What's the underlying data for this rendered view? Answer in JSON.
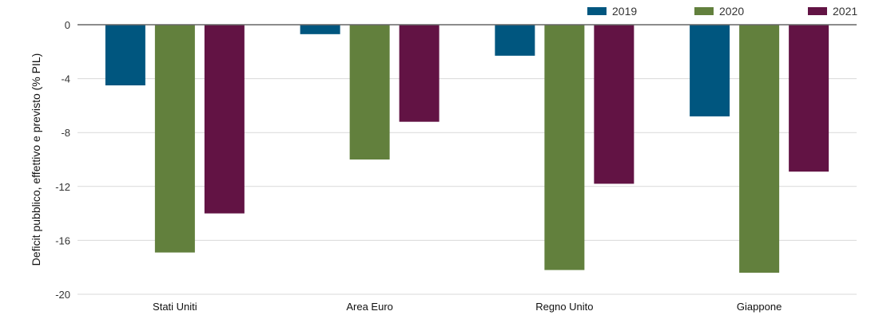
{
  "chart_data": {
    "type": "bar",
    "title": "",
    "xlabel": "",
    "ylabel": "Deficit pubblico, effettivo e previsto (% PIL)",
    "ylim": [
      -20,
      0
    ],
    "yticks": [
      0,
      -4,
      -8,
      -12,
      -16,
      -20
    ],
    "grid": true,
    "legend_position": "top-right",
    "categories": [
      "Stati Uniti",
      "Area Euro",
      "Regno Unito",
      "Giappone"
    ],
    "series": [
      {
        "name": "2019",
        "color": "#00567f",
        "values": [
          -4.5,
          -0.7,
          -2.3,
          -6.8
        ]
      },
      {
        "name": "2020",
        "color": "#62803d",
        "values": [
          -16.9,
          -10.0,
          -18.2,
          -18.4
        ]
      },
      {
        "name": "2021",
        "color": "#621344",
        "values": [
          -14.0,
          -7.2,
          -11.8,
          -10.9
        ]
      }
    ]
  },
  "legend": {
    "items": [
      {
        "label": "2019",
        "color": "#00567f",
        "x": 735
      },
      {
        "label": "2020",
        "color": "#62803d",
        "x": 869
      },
      {
        "label": "2021",
        "color": "#621344",
        "x": 1011
      }
    ]
  },
  "colors": {
    "grid": "#d9d9d9",
    "zero_line": "#666666"
  }
}
